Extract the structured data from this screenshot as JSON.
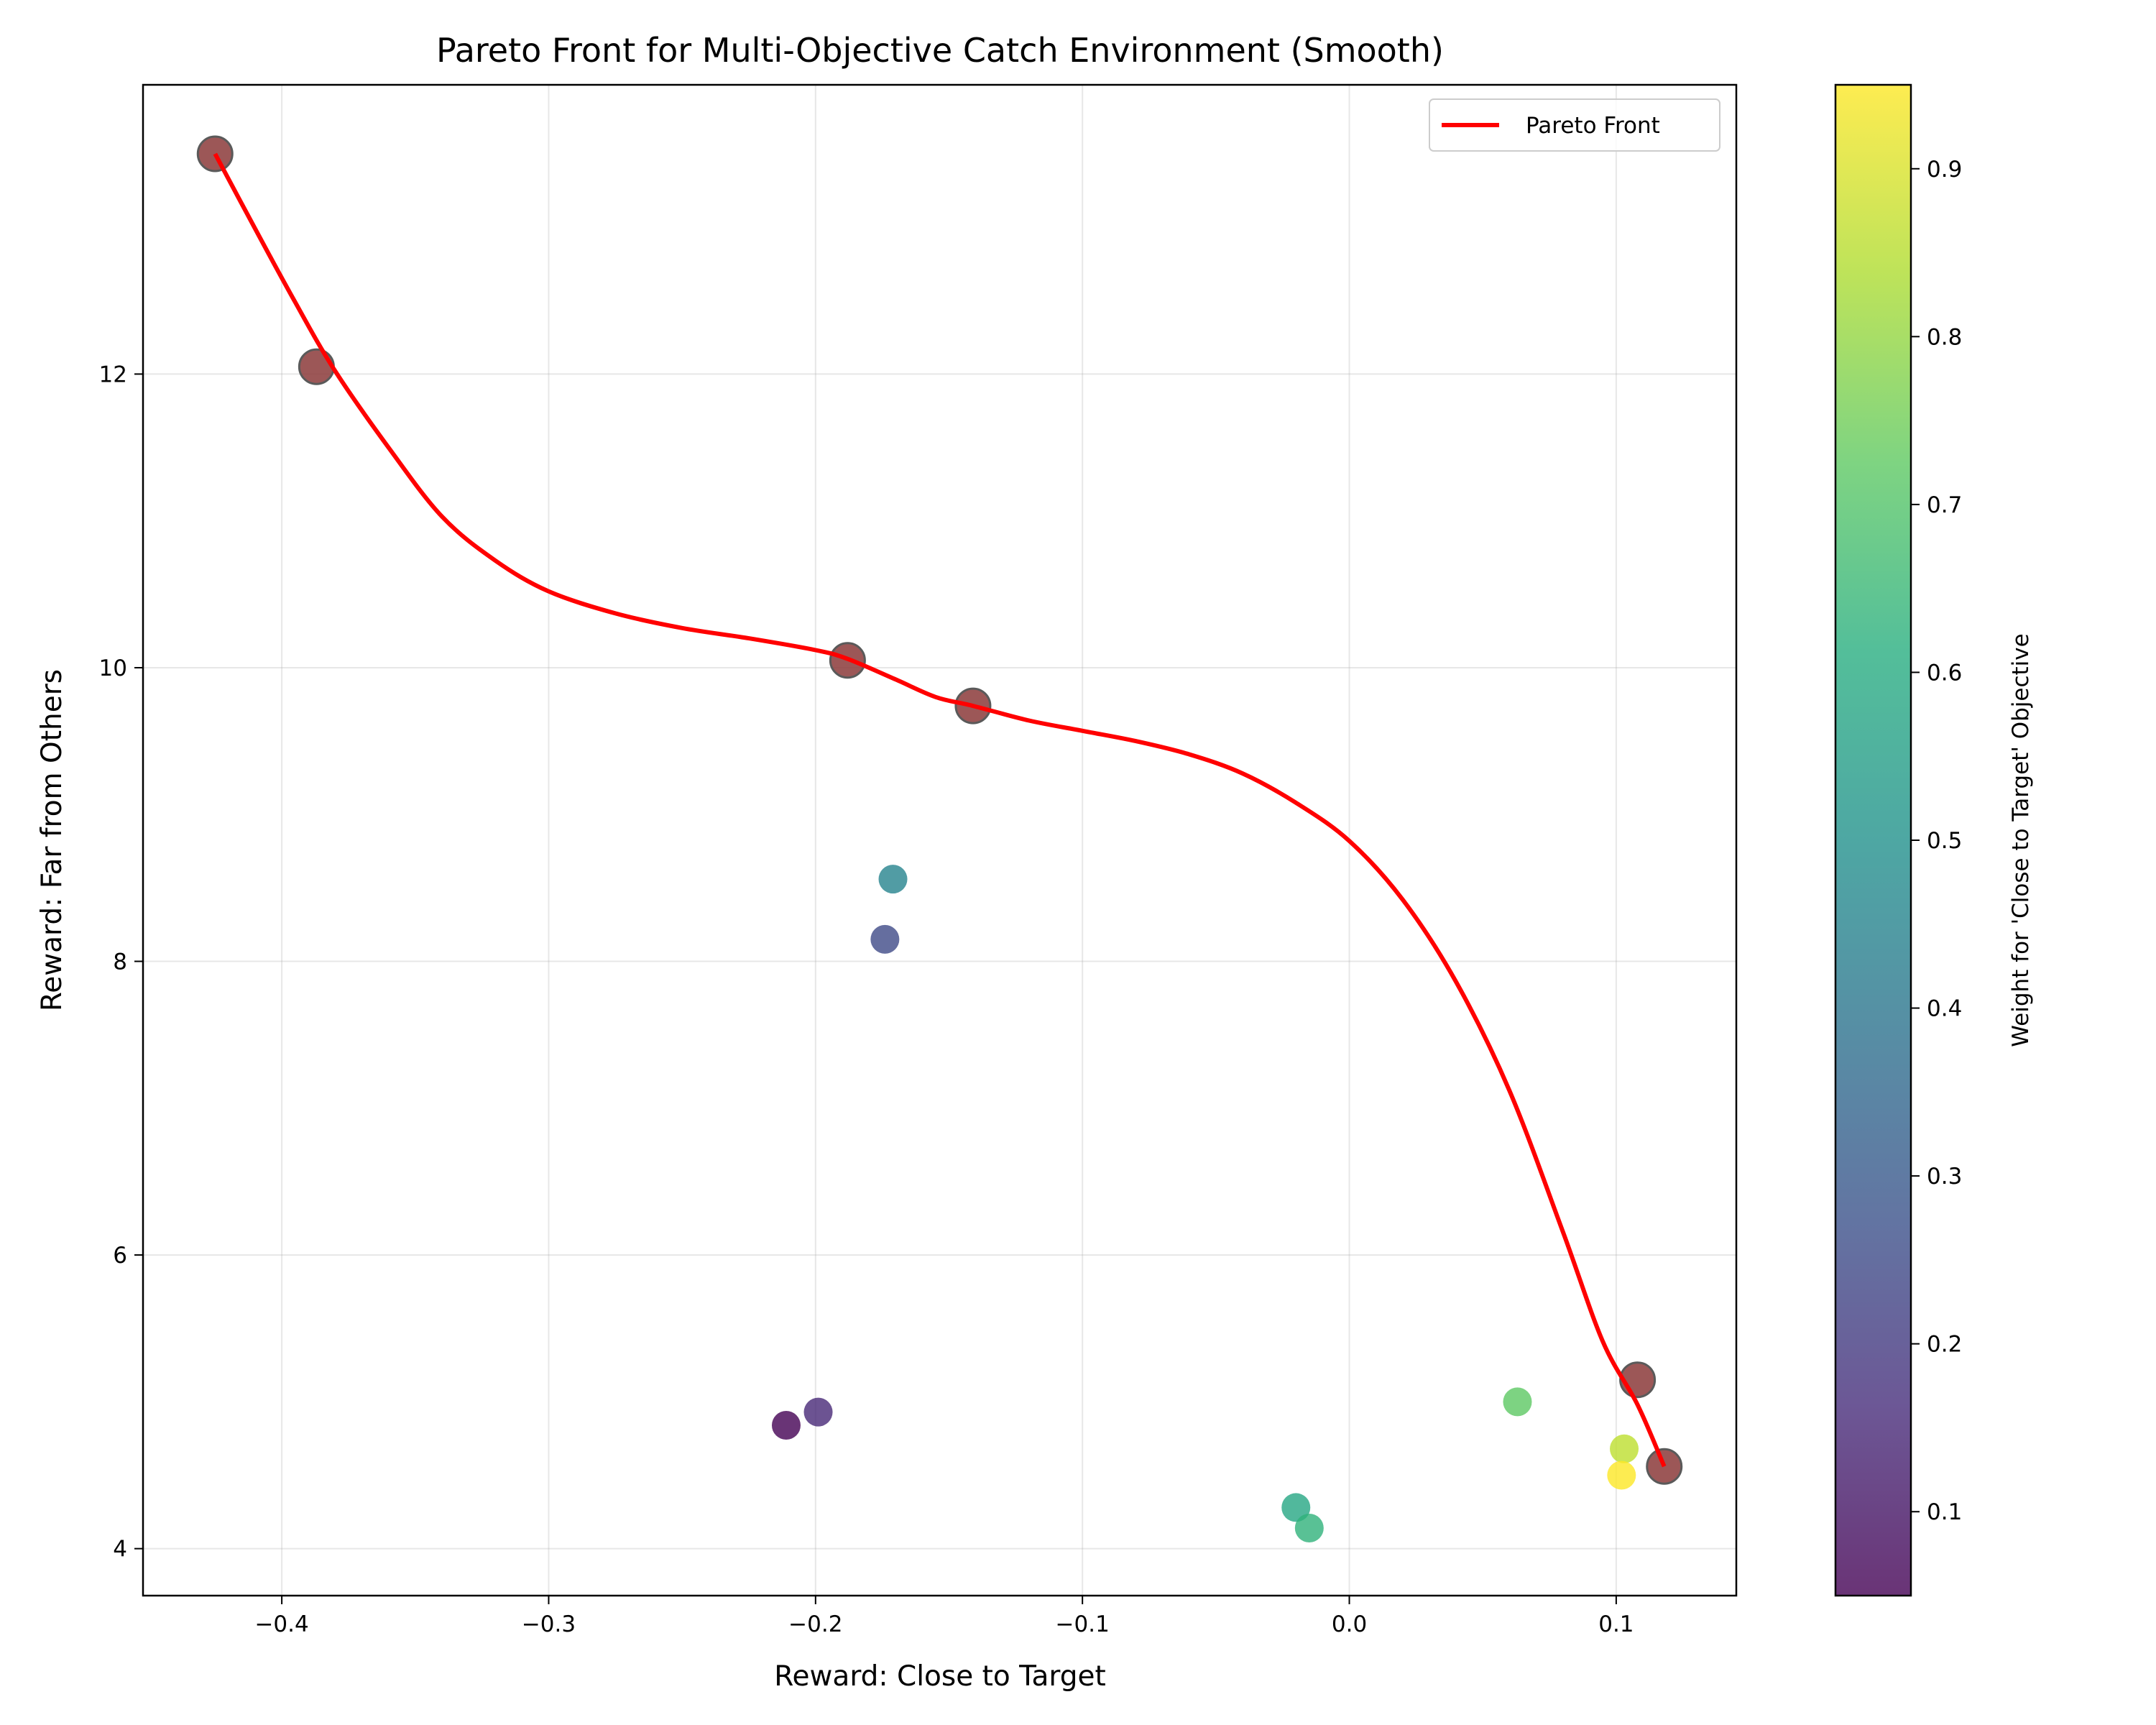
{
  "chart_data": {
    "type": "scatter",
    "title": "Pareto Front for Multi-Objective Catch Environment (Smooth)",
    "xlabel": "Reward: Close to Target",
    "ylabel": "Reward: Far from Others",
    "xlim": [
      -0.452,
      0.145
    ],
    "ylim": [
      3.68,
      13.97
    ],
    "x_ticks": [
      -0.4,
      -0.3,
      -0.2,
      -0.1,
      0.0,
      0.1
    ],
    "x_tick_labels": [
      "−0.4",
      "−0.3",
      "−0.2",
      "−0.1",
      "0.0",
      "0.1"
    ],
    "y_ticks": [
      4,
      6,
      8,
      10,
      12
    ],
    "y_tick_labels": [
      "4",
      "6",
      "8",
      "10",
      "12"
    ],
    "grid": true,
    "legend": {
      "position": "top-right",
      "entries": [
        "Pareto Front"
      ]
    },
    "colorbar": {
      "label": "Weight for 'Close to Target' Objective",
      "range": [
        0.05,
        0.95
      ],
      "ticks": [
        0.1,
        0.2,
        0.3,
        0.4,
        0.5,
        0.6,
        0.7,
        0.8,
        0.9
      ],
      "tick_labels": [
        "0.1",
        "0.2",
        "0.3",
        "0.4",
        "0.5",
        "0.6",
        "0.7",
        "0.8",
        "0.9"
      ],
      "colormap": "viridis"
    },
    "series": [
      {
        "kind": "scatter",
        "points": [
          {
            "x": -0.211,
            "y": 4.84,
            "w": 0.05
          },
          {
            "x": -0.199,
            "y": 4.93,
            "w": 0.15
          },
          {
            "x": -0.174,
            "y": 8.15,
            "w": 0.25
          },
          {
            "x": -0.171,
            "y": 8.56,
            "w": 0.45
          },
          {
            "x": -0.02,
            "y": 4.28,
            "w": 0.58
          },
          {
            "x": -0.015,
            "y": 4.14,
            "w": 0.63
          },
          {
            "x": 0.063,
            "y": 5.0,
            "w": 0.72
          },
          {
            "x": 0.103,
            "y": 4.68,
            "w": 0.86
          },
          {
            "x": 0.102,
            "y": 4.5,
            "w": 0.95
          }
        ]
      },
      {
        "kind": "pareto_points",
        "color": "#8b3a3a",
        "points": [
          {
            "x": -0.425,
            "y": 13.5
          },
          {
            "x": -0.387,
            "y": 12.05
          },
          {
            "x": -0.188,
            "y": 10.05
          },
          {
            "x": -0.141,
            "y": 9.74
          },
          {
            "x": 0.108,
            "y": 5.15
          },
          {
            "x": 0.118,
            "y": 4.56
          }
        ]
      },
      {
        "kind": "line",
        "name": "Pareto Front",
        "color": "#ff0000",
        "x": [
          -0.425,
          -0.41,
          -0.395,
          -0.38,
          -0.36,
          -0.34,
          -0.32,
          -0.3,
          -0.275,
          -0.25,
          -0.225,
          -0.2,
          -0.188,
          -0.17,
          -0.155,
          -0.141,
          -0.12,
          -0.1,
          -0.08,
          -0.06,
          -0.04,
          -0.02,
          0.0,
          0.02,
          0.04,
          0.06,
          0.08,
          0.095,
          0.108,
          0.118
        ],
        "y": [
          13.5,
          12.99,
          12.49,
          12.02,
          11.5,
          11.03,
          10.73,
          10.52,
          10.37,
          10.27,
          10.2,
          10.12,
          10.06,
          9.92,
          9.8,
          9.74,
          9.64,
          9.57,
          9.5,
          9.41,
          9.28,
          9.08,
          8.82,
          8.42,
          7.86,
          7.12,
          6.16,
          5.41,
          4.98,
          4.56
        ]
      }
    ]
  }
}
